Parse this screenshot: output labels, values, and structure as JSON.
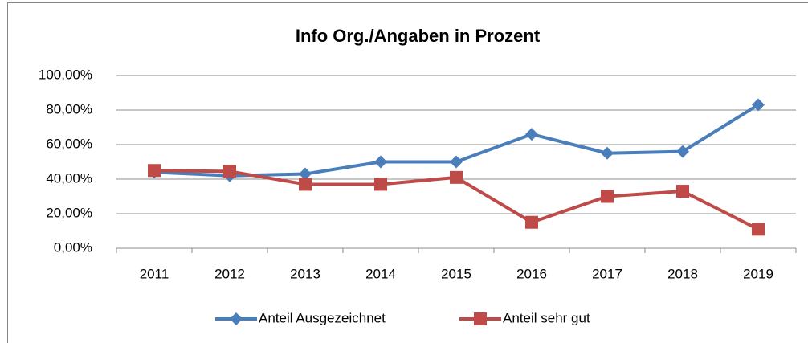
{
  "chart_data": {
    "type": "line",
    "title": "Info Org./Angaben in Prozent",
    "categories": [
      "2011",
      "2012",
      "2013",
      "2014",
      "2015",
      "2016",
      "2017",
      "2018",
      "2019"
    ],
    "series": [
      {
        "name": "Anteil Ausgezeichnet",
        "color": "#4a7ebb",
        "marker": "diamond",
        "values": [
          44,
          42,
          43,
          50,
          50,
          66,
          55,
          56,
          83
        ]
      },
      {
        "name": "Anteil sehr gut",
        "color": "#be4b48",
        "marker": "square",
        "values": [
          45,
          44.5,
          37,
          37,
          41,
          15,
          30,
          33,
          11
        ]
      }
    ],
    "ylim": [
      0,
      100
    ],
    "yticks": [
      {
        "value": 0,
        "label": "0,00%"
      },
      {
        "value": 20,
        "label": "20,00%"
      },
      {
        "value": 40,
        "label": "40,00%"
      },
      {
        "value": 60,
        "label": "60,00%"
      },
      {
        "value": 80,
        "label": "80,00%"
      },
      {
        "value": 100,
        "label": "100,00%"
      }
    ],
    "grid": true,
    "legend": "bottom"
  }
}
